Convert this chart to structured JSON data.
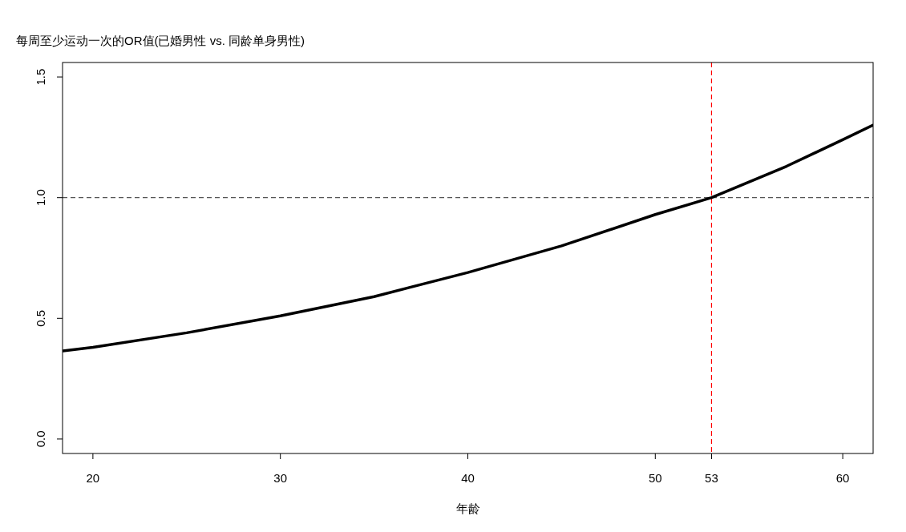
{
  "chart_data": {
    "type": "line",
    "title": "每周至少运动一次的OR值(已婚男性 vs. 同龄单身男性)",
    "xlabel": "年龄",
    "x": [
      18.4,
      20,
      25,
      30,
      35,
      40,
      45,
      50,
      53,
      57,
      60,
      61.6
    ],
    "series": [
      {
        "color": "#000000",
        "values": [
          0.365,
          0.38,
          0.44,
          0.51,
          0.59,
          0.69,
          0.8,
          0.93,
          1.0,
          1.13,
          1.24,
          1.3
        ]
      }
    ],
    "xlim": [
      18.38,
      61.62
    ],
    "ylim": [
      -0.06,
      1.56
    ],
    "xticks": [
      20,
      30,
      40,
      50,
      53,
      60
    ],
    "yticks": [
      {
        "value": 0,
        "label": "0.0"
      },
      {
        "value": 0.5,
        "label": "0.5"
      },
      {
        "value": 1,
        "label": "1.0"
      },
      {
        "value": 1.5,
        "label": "1.5"
      }
    ],
    "marker": "none",
    "line_style": "solid",
    "ref_lines": [
      {
        "axis": "y",
        "value": 1,
        "color": "#555555",
        "line_style": "dashed"
      },
      {
        "axis": "x",
        "value": 53,
        "color": "#ff0000",
        "line_style": "dashed"
      }
    ]
  }
}
